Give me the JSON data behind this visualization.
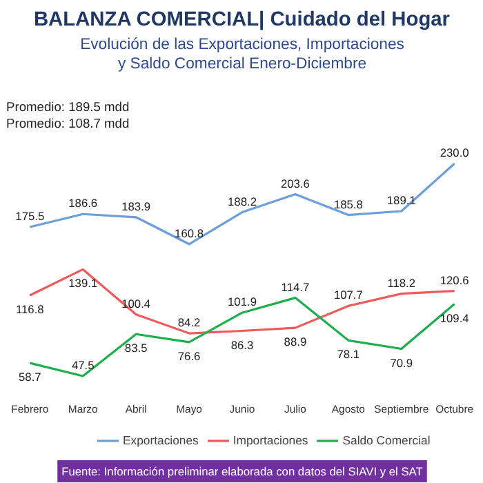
{
  "chart_data": {
    "type": "line",
    "title": "BALANZA COMERCIAL| Cuidado del Hogar",
    "subtitle": "Evolución de las Exportaciones, Importaciones\ny Saldo Comercial Enero-Diciembre",
    "categories": [
      "Febrero",
      "Marzo",
      "Abril",
      "Mayo",
      "Junio",
      "Julio",
      "Agosto",
      "Septiembre",
      "Octubre"
    ],
    "series": [
      {
        "name": "Exportaciones",
        "color": "#6a9fdc",
        "values": [
          175.5,
          186.6,
          183.9,
          160.8,
          188.2,
          203.6,
          185.8,
          189.1,
          230.0
        ],
        "value_labels": [
          "175.5",
          "186.6",
          "183.9",
          "160.8",
          "188.2",
          "203.6",
          "185.8",
          "189.1",
          "230.0"
        ]
      },
      {
        "name": "Importaciones",
        "color": "#f05a5a",
        "values": [
          116.8,
          139.1,
          100.4,
          84.2,
          86.3,
          88.9,
          107.7,
          118.2,
          120.6
        ],
        "value_labels": [
          "116.8",
          "139.1",
          "100.4",
          "84.2",
          "86.3",
          "88.9",
          "107.7",
          "118.2",
          "120.6"
        ]
      },
      {
        "name": "Saldo Comercial",
        "color": "#1fae4b",
        "values": [
          58.7,
          47.5,
          83.5,
          76.6,
          101.9,
          114.7,
          78.1,
          70.9,
          109.4
        ],
        "value_labels": [
          "58.7",
          "47.5",
          "83.5",
          "76.6",
          "101.9",
          "114.7",
          "78.1",
          "70.9",
          "109.4"
        ]
      }
    ],
    "annotations": [
      "Promedio: 189.5 mdd",
      "Promedio: 108.7 mdd",
      "Fuente: Información preliminar elaborada con datos del SIAVI y el SAT"
    ],
    "legend": "bottom",
    "grid": false,
    "marker": "none",
    "line_style": "solid"
  }
}
